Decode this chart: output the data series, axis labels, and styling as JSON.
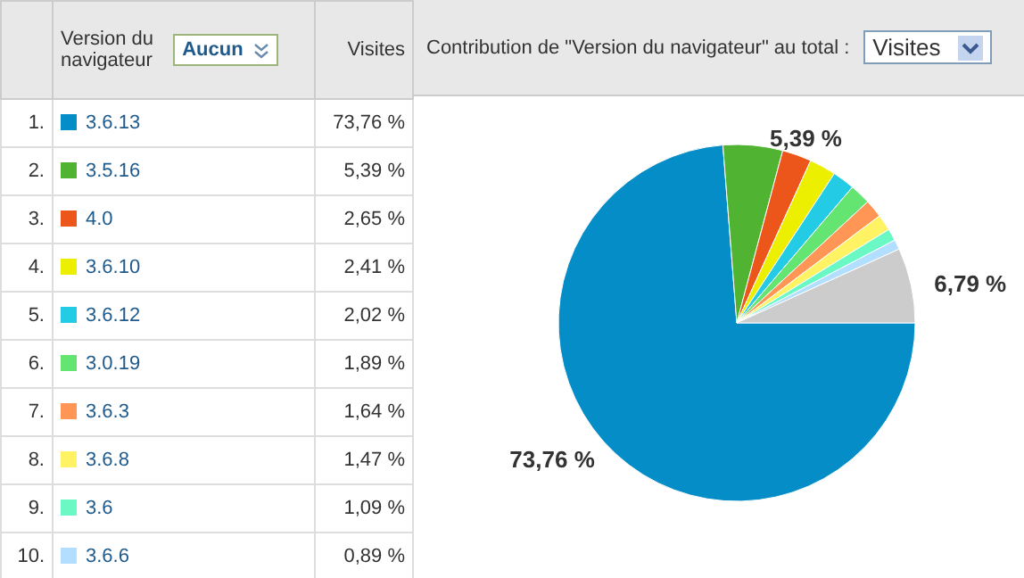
{
  "chart_data": {
    "type": "pie",
    "title": "Contribution de \"Version du navigateur\" au total :",
    "legend_title": "Version du navigateur",
    "ylabel": "Visites",
    "annotations": [
      "Aucun",
      "Visites",
      "1.",
      "2.",
      "3.",
      "4.",
      "5.",
      "6.",
      "7.",
      "8.",
      "9.",
      "10."
    ],
    "categories": [
      "3.6.13",
      "3.5.16",
      "4.0",
      "3.6.10",
      "3.6.12",
      "3.0.19",
      "3.6.3",
      "3.6.8",
      "3.6",
      "3.6.6",
      null
    ],
    "values": [
      73.76,
      5.39,
      2.65,
      2.41,
      2.02,
      1.89,
      1.64,
      1.47,
      1.09,
      0.89,
      6.79
    ],
    "colors": [
      "#058dc7",
      "#50b432",
      "#ed561b",
      "#edef00",
      "#24cbe5",
      "#64e572",
      "#ff9655",
      "#fff263",
      "#6af9c4",
      "#b2deff",
      "#cccccc"
    ],
    "value_labels": [
      "73,76 %",
      "5,39 %",
      "2,65 %",
      "2,41 %",
      "2,02 %",
      "1,89 %",
      "1,64 %",
      "1,47 %",
      "1,09 %",
      "0,89 %",
      "6,79 %"
    ],
    "legend": "left"
  }
}
